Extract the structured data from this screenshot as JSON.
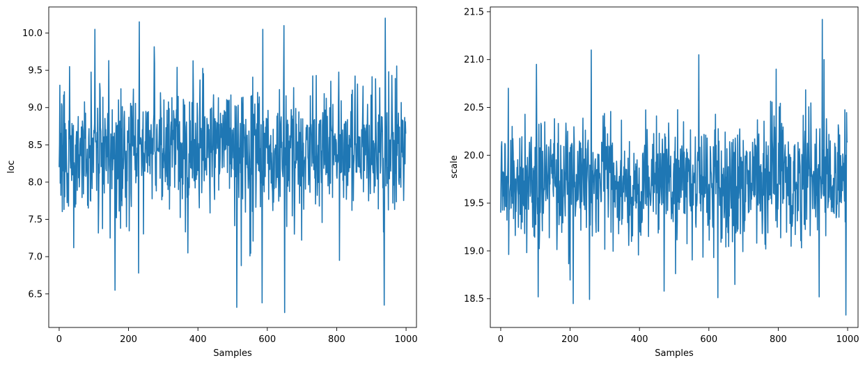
{
  "chart_data": [
    {
      "type": "line",
      "title": "",
      "xlabel": "Samples",
      "ylabel": "loc",
      "xlim": [
        -30,
        1030
      ],
      "ylim": [
        6.05,
        10.35
      ],
      "xticks": [
        0,
        200,
        400,
        600,
        800,
        1000
      ],
      "xtick_labels": [
        "0",
        "200",
        "400",
        "600",
        "800",
        "1000"
      ],
      "yticks": [
        6.5,
        7.0,
        7.5,
        8.0,
        8.5,
        9.0,
        9.5,
        10.0
      ],
      "ytick_labels": [
        "6.5",
        "7.0",
        "7.5",
        "8.0",
        "8.5",
        "9.0",
        "9.5",
        "10.0"
      ],
      "grid": false,
      "color": "#1f77b4",
      "n_samples": 1000,
      "center": 8.45,
      "spread": 0.42,
      "min_value": 6.25,
      "max_value": 10.2,
      "extremes": [
        {
          "x": 0,
          "y": 8.2
        },
        {
          "x": 2,
          "y": 9.3
        },
        {
          "x": 30,
          "y": 9.55
        },
        {
          "x": 42,
          "y": 7.12
        },
        {
          "x": 103,
          "y": 10.05
        },
        {
          "x": 161,
          "y": 6.55
        },
        {
          "x": 229,
          "y": 6.78
        },
        {
          "x": 231,
          "y": 10.15
        },
        {
          "x": 371,
          "y": 7.05
        },
        {
          "x": 512,
          "y": 6.32
        },
        {
          "x": 525,
          "y": 6.88
        },
        {
          "x": 585,
          "y": 6.38
        },
        {
          "x": 587,
          "y": 10.05
        },
        {
          "x": 650,
          "y": 6.25
        },
        {
          "x": 648,
          "y": 10.1
        },
        {
          "x": 808,
          "y": 6.95
        },
        {
          "x": 937,
          "y": 6.35
        },
        {
          "x": 940,
          "y": 10.2
        },
        {
          "x": 999,
          "y": 8.65
        }
      ]
    },
    {
      "type": "line",
      "title": "",
      "xlabel": "Samples",
      "ylabel": "scale",
      "xlim": [
        -30,
        1030
      ],
      "ylim": [
        18.2,
        21.55
      ],
      "xticks": [
        0,
        200,
        400,
        600,
        800,
        1000
      ],
      "xtick_labels": [
        "0",
        "200",
        "400",
        "600",
        "800",
        "1000"
      ],
      "yticks": [
        18.5,
        19.0,
        19.5,
        20.0,
        20.5,
        21.0,
        21.5
      ],
      "ytick_labels": [
        "18.5",
        "19.0",
        "19.5",
        "20.0",
        "20.5",
        "21.0",
        "21.5"
      ],
      "grid": false,
      "color": "#1f77b4",
      "n_samples": 1000,
      "center": 19.72,
      "spread": 0.33,
      "min_value": 18.33,
      "max_value": 21.42,
      "extremes": [
        {
          "x": 0,
          "y": 19.4
        },
        {
          "x": 22,
          "y": 20.7
        },
        {
          "x": 103,
          "y": 20.95
        },
        {
          "x": 108,
          "y": 18.52
        },
        {
          "x": 209,
          "y": 18.45
        },
        {
          "x": 261,
          "y": 21.1
        },
        {
          "x": 471,
          "y": 18.58
        },
        {
          "x": 571,
          "y": 21.05
        },
        {
          "x": 675,
          "y": 18.65
        },
        {
          "x": 794,
          "y": 20.9
        },
        {
          "x": 918,
          "y": 18.52
        },
        {
          "x": 927,
          "y": 21.42
        },
        {
          "x": 932,
          "y": 21.0
        },
        {
          "x": 995,
          "y": 18.33
        },
        {
          "x": 1000,
          "y": 20.15
        }
      ]
    }
  ]
}
